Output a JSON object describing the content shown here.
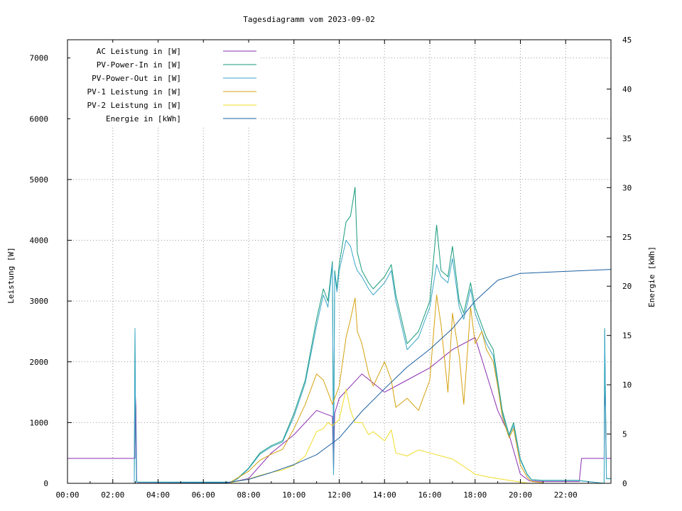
{
  "chart_data": {
    "type": "line",
    "title": "Tagesdiagramm vom 2023-09-02",
    "ylabel": "Leistung [W]",
    "y2label": "Energie [kWh]",
    "xlim": [
      0,
      24
    ],
    "ylim": [
      0,
      7300
    ],
    "y2lim": [
      0,
      45
    ],
    "x_ticks": [
      "00:00",
      "02:00",
      "04:00",
      "06:00",
      "08:00",
      "10:00",
      "12:00",
      "14:00",
      "16:00",
      "18:00",
      "20:00",
      "22:00"
    ],
    "y_ticks": [
      "0",
      "1000",
      "2000",
      "3000",
      "4000",
      "5000",
      "6000",
      "7000"
    ],
    "y2_ticks": [
      "0",
      "5",
      "10",
      "15",
      "20",
      "25",
      "30",
      "35",
      "40",
      "45"
    ],
    "grid": true,
    "legend_position": "top-left",
    "series": [
      {
        "name": "AC Leistung in [W]",
        "color": "#8a2fb0",
        "axis": "left",
        "x": [
          0,
          2.9,
          2.98,
          2.99,
          3.02,
          3.06,
          3.1,
          7.2,
          8,
          9,
          10,
          11,
          11.7,
          11.75,
          11.8,
          12,
          13,
          14,
          15,
          16,
          17,
          18,
          19,
          19.5,
          20,
          20.4,
          21,
          22,
          22.6,
          22.7,
          23.5,
          23.7,
          23.72,
          23.76,
          23.78,
          24
        ],
        "y": [
          410,
          410,
          410,
          1480,
          1250,
          20,
          15,
          15,
          80,
          500,
          800,
          1200,
          1100,
          200,
          1150,
          1400,
          1800,
          1500,
          1700,
          1900,
          2200,
          2400,
          1200,
          800,
          150,
          40,
          30,
          30,
          30,
          410,
          410,
          410,
          1480,
          1250,
          410,
          410
        ]
      },
      {
        "name": "PV-Power-In in [W]",
        "color": "#159a7a",
        "axis": "left",
        "x": [
          2.95,
          2.98,
          3.0,
          3.05,
          3.1,
          7.2,
          7.5,
          8,
          8.5,
          9,
          9.5,
          10,
          10.5,
          11,
          11.3,
          11.5,
          11.7,
          11.75,
          11.8,
          11.9,
          12,
          12.3,
          12.5,
          12.7,
          12.8,
          13,
          13.3,
          13.5,
          14,
          14.3,
          14.5,
          15,
          15.5,
          16,
          16.3,
          16.5,
          16.8,
          17,
          17.3,
          17.5,
          17.8,
          18,
          18.3,
          18.5,
          18.8,
          19,
          19.2,
          19.5,
          19.7,
          20,
          20.3,
          20.5,
          21,
          22,
          22.5,
          23.7,
          23.72,
          23.76,
          23.8,
          24
        ],
        "y": [
          0,
          2550,
          1300,
          30,
          20,
          20,
          80,
          250,
          500,
          620,
          700,
          1150,
          1700,
          2700,
          3200,
          3000,
          3650,
          150,
          3500,
          3200,
          3600,
          4300,
          4400,
          4870,
          3800,
          3500,
          3300,
          3200,
          3400,
          3600,
          3100,
          2300,
          2500,
          3000,
          4250,
          3500,
          3400,
          3900,
          3000,
          2800,
          3300,
          2900,
          2600,
          2400,
          2200,
          1700,
          1200,
          800,
          1000,
          400,
          150,
          60,
          50,
          50,
          50,
          0,
          2550,
          1300,
          80,
          80
        ]
      },
      {
        "name": "PV-Power-Out in [W]",
        "color": "#3aa6c8",
        "axis": "left",
        "x": [
          2.95,
          2.98,
          3.0,
          3.05,
          3.1,
          7.2,
          7.5,
          8,
          8.5,
          9,
          9.5,
          10,
          10.5,
          11,
          11.3,
          11.5,
          11.7,
          11.75,
          11.8,
          11.9,
          12,
          12.3,
          12.5,
          12.7,
          12.8,
          13,
          13.3,
          13.5,
          14,
          14.3,
          14.5,
          15,
          15.5,
          16,
          16.3,
          16.5,
          16.8,
          17,
          17.3,
          17.5,
          17.8,
          18,
          18.3,
          18.5,
          18.8,
          19,
          19.2,
          19.5,
          19.7,
          20,
          20.3,
          20.5,
          21,
          22,
          22.5,
          23.7,
          23.72,
          23.76,
          23.8,
          24
        ],
        "y": [
          0,
          2540,
          1280,
          25,
          18,
          18,
          70,
          240,
          480,
          600,
          680,
          1100,
          1650,
          2600,
          3100,
          2900,
          3600,
          140,
          3450,
          3150,
          3500,
          4000,
          3900,
          3600,
          3500,
          3400,
          3200,
          3100,
          3300,
          3500,
          3000,
          2200,
          2400,
          2900,
          3600,
          3400,
          3300,
          3700,
          2900,
          2700,
          3200,
          2800,
          2500,
          2300,
          2100,
          1650,
          1150,
          780,
          950,
          380,
          140,
          55,
          45,
          45,
          45,
          0,
          2540,
          1280,
          75,
          75
        ]
      },
      {
        "name": "PV-1 Leistung in [W]",
        "color": "#d4a20f",
        "axis": "left",
        "x": [
          7.2,
          8,
          8.5,
          9,
          9.5,
          10,
          10.5,
          11,
          11.3,
          11.5,
          11.7,
          12,
          12.3,
          12.5,
          12.7,
          12.8,
          13,
          13.3,
          13.5,
          14,
          14.3,
          14.5,
          15,
          15.5,
          16,
          16.3,
          16.5,
          16.8,
          17,
          17.3,
          17.5,
          17.8,
          18,
          18.3,
          18.5,
          18.8,
          19,
          19.2,
          19.5,
          19.7,
          20,
          20.3,
          20.5,
          21
        ],
        "y": [
          20,
          200,
          380,
          480,
          560,
          900,
          1300,
          1800,
          1700,
          1500,
          1300,
          1600,
          2400,
          2700,
          3050,
          2500,
          2300,
          1800,
          1600,
          2000,
          1700,
          1250,
          1400,
          1200,
          1700,
          3100,
          2600,
          1500,
          2800,
          2100,
          1300,
          2900,
          2300,
          2500,
          2200,
          2000,
          1600,
          1100,
          750,
          900,
          300,
          100,
          30,
          10
        ]
      },
      {
        "name": "PV-2 Leistung in [W]",
        "color": "#f0dc2a",
        "axis": "left",
        "x": [
          7.2,
          8,
          8.5,
          9,
          9.5,
          10,
          10.5,
          11,
          11.3,
          11.5,
          11.7,
          12,
          12.3,
          12.5,
          12.7,
          13,
          13.3,
          13.5,
          14,
          14.3,
          14.5,
          15,
          15.5,
          16,
          16.5,
          17,
          17.5,
          18,
          18.5,
          19,
          19.5,
          20,
          20.3,
          20.5
        ],
        "y": [
          10,
          70,
          130,
          180,
          220,
          300,
          450,
          850,
          900,
          1000,
          950,
          1050,
          1550,
          1200,
          1000,
          1000,
          800,
          850,
          700,
          880,
          500,
          450,
          550,
          500,
          450,
          400,
          280,
          150,
          110,
          80,
          50,
          20,
          5,
          0
        ]
      },
      {
        "name": "Energie in [kWh]",
        "color": "#1b5fa0",
        "axis": "right",
        "x": [
          0,
          3,
          7,
          8,
          9,
          10,
          11,
          12,
          13,
          14,
          15,
          16,
          17,
          18,
          19,
          20,
          21,
          22,
          23,
          24
        ],
        "y": [
          0,
          0,
          0.05,
          0.4,
          1.1,
          1.9,
          2.9,
          4.6,
          7.3,
          9.6,
          11.8,
          13.6,
          15.7,
          18.5,
          20.6,
          21.3,
          21.4,
          21.5,
          21.6,
          21.7
        ]
      }
    ]
  }
}
